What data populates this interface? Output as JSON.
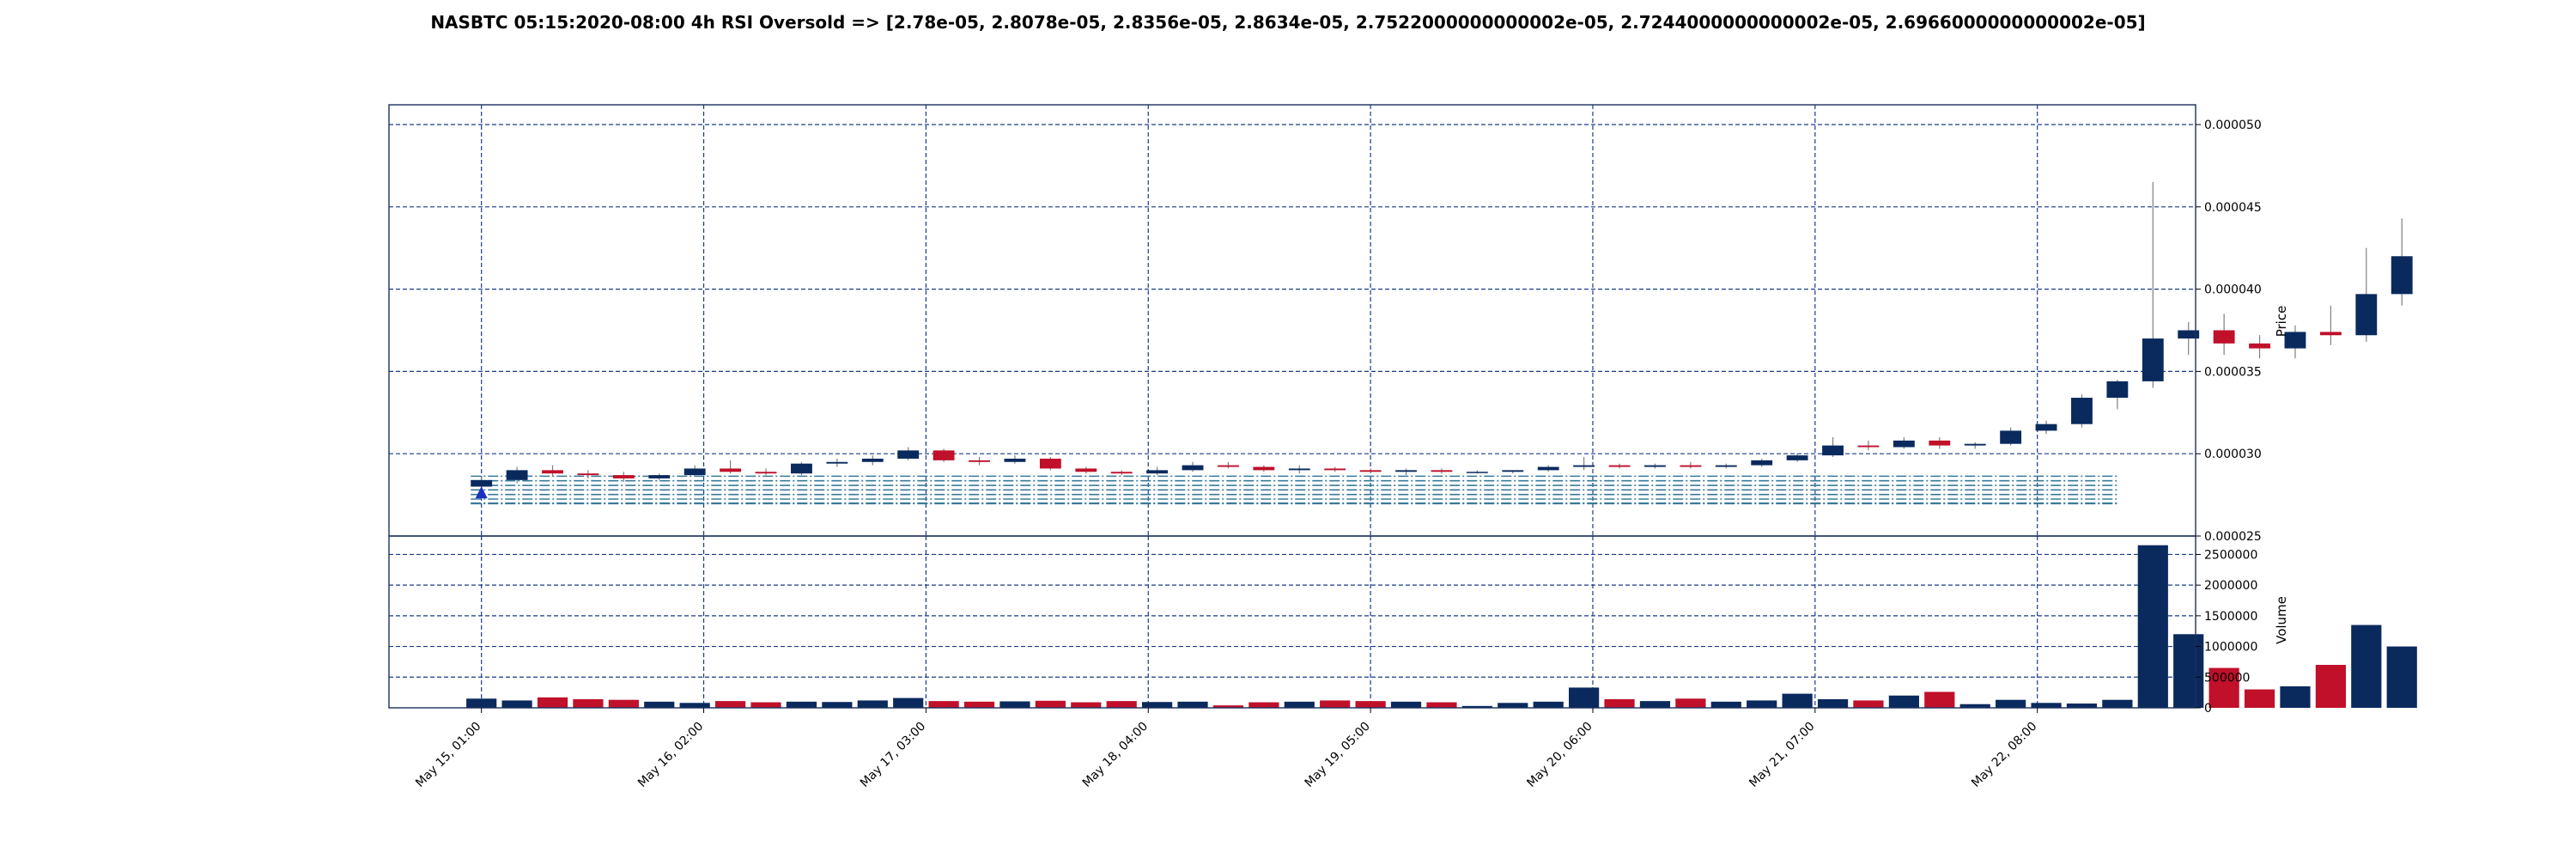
{
  "chart_data": {
    "type": "candlestick",
    "title": "NASBTC 05:15:2020-08:00 4h RSI Oversold => [2.78e-05, 2.8078e-05, 2.8356e-05, 2.8634e-05, 2.7522000000000002e-05, 2.7244000000000002e-05, 2.6966000000000002e-05]",
    "price_axis": {
      "label": "Price",
      "ylim": [
        2.5e-05,
        5.12e-05
      ],
      "ticks": [
        "0.000025",
        "0.000030",
        "0.000035",
        "0.000040",
        "0.000045",
        "0.000050"
      ],
      "position": "right"
    },
    "volume_axis": {
      "label": "Volume",
      "ylim": [
        0,
        2800000
      ],
      "ticks": [
        "0",
        "500000",
        "1000000",
        "1500000",
        "2000000",
        "2500000"
      ],
      "position": "right"
    },
    "x_axis": {
      "ticks": [
        "May 15, 01:00",
        "May 16, 02:00",
        "May 17, 03:00",
        "May 18, 04:00",
        "May 19, 05:00",
        "May 20, 06:00",
        "May 21, 07:00",
        "May 22, 08:00"
      ],
      "tick_index": [
        0,
        6.25,
        12.5,
        18.75,
        25,
        31.25,
        37.5,
        43.75
      ],
      "range": [
        -2.6,
        48.2
      ]
    },
    "grid": true,
    "colors": {
      "up": "#0a2a5e",
      "down": "#c0102a",
      "grid": "#1a3a8a",
      "support": "#3a7a9a",
      "marker": "#1a30c0"
    },
    "support_levels": [
      2.7e-05,
      2.7244e-05,
      2.7522e-05,
      2.78e-05,
      2.8078e-05,
      2.8356e-05,
      2.8634e-05,
      2.6966e-05
    ],
    "support_range": [
      -0.3,
      46.0
    ],
    "signal_marker": {
      "x": 0,
      "y": 2.76e-05
    },
    "candles": [
      {
        "o": 2.8e-05,
        "h": 2.86e-05,
        "l": 2.78e-05,
        "c": 2.84e-05,
        "v": 150000
      },
      {
        "o": 2.84e-05,
        "h": 2.92e-05,
        "l": 2.82e-05,
        "c": 2.9e-05,
        "v": 120000
      },
      {
        "o": 2.9e-05,
        "h": 2.93e-05,
        "l": 2.86e-05,
        "c": 2.88e-05,
        "v": 170000
      },
      {
        "o": 2.88e-05,
        "h": 2.9e-05,
        "l": 2.85e-05,
        "c": 2.87e-05,
        "v": 140000
      },
      {
        "o": 2.87e-05,
        "h": 2.89e-05,
        "l": 2.83e-05,
        "c": 2.85e-05,
        "v": 130000
      },
      {
        "o": 2.85e-05,
        "h": 2.88e-05,
        "l": 2.84e-05,
        "c": 2.87e-05,
        "v": 100000
      },
      {
        "o": 2.87e-05,
        "h": 2.93e-05,
        "l": 2.86e-05,
        "c": 2.91e-05,
        "v": 80000
      },
      {
        "o": 2.91e-05,
        "h": 2.96e-05,
        "l": 2.88e-05,
        "c": 2.89e-05,
        "v": 110000
      },
      {
        "o": 2.89e-05,
        "h": 2.91e-05,
        "l": 2.87e-05,
        "c": 2.88e-05,
        "v": 90000
      },
      {
        "o": 2.88e-05,
        "h": 2.95e-05,
        "l": 2.87e-05,
        "c": 2.94e-05,
        "v": 100000
      },
      {
        "o": 2.94e-05,
        "h": 2.97e-05,
        "l": 2.92e-05,
        "c": 2.95e-05,
        "v": 95000
      },
      {
        "o": 2.95e-05,
        "h": 2.99e-05,
        "l": 2.93e-05,
        "c": 2.97e-05,
        "v": 120000
      },
      {
        "o": 2.97e-05,
        "h": 3.04e-05,
        "l": 2.96e-05,
        "c": 3.02e-05,
        "v": 160000
      },
      {
        "o": 3.02e-05,
        "h": 3.03e-05,
        "l": 2.95e-05,
        "c": 2.96e-05,
        "v": 110000
      },
      {
        "o": 2.96e-05,
        "h": 2.98e-05,
        "l": 2.93e-05,
        "c": 2.95e-05,
        "v": 100000
      },
      {
        "o": 2.95e-05,
        "h": 2.99e-05,
        "l": 2.94e-05,
        "c": 2.97e-05,
        "v": 105000
      },
      {
        "o": 2.97e-05,
        "h": 2.98e-05,
        "l": 2.9e-05,
        "c": 2.91e-05,
        "v": 115000
      },
      {
        "o": 2.91e-05,
        "h": 2.92e-05,
        "l": 2.88e-05,
        "c": 2.89e-05,
        "v": 90000
      },
      {
        "o": 2.89e-05,
        "h": 2.9e-05,
        "l": 2.87e-05,
        "c": 2.88e-05,
        "v": 110000
      },
      {
        "o": 2.88e-05,
        "h": 2.92e-05,
        "l": 2.87e-05,
        "c": 2.9e-05,
        "v": 95000
      },
      {
        "o": 2.9e-05,
        "h": 2.95e-05,
        "l": 2.89e-05,
        "c": 2.93e-05,
        "v": 100000
      },
      {
        "o": 2.93e-05,
        "h": 2.95e-05,
        "l": 2.91e-05,
        "c": 2.92e-05,
        "v": 40000
      },
      {
        "o": 2.92e-05,
        "h": 2.93e-05,
        "l": 2.89e-05,
        "c": 2.9e-05,
        "v": 90000
      },
      {
        "o": 2.9e-05,
        "h": 2.93e-05,
        "l": 2.88e-05,
        "c": 2.91e-05,
        "v": 100000
      },
      {
        "o": 2.91e-05,
        "h": 2.92e-05,
        "l": 2.89e-05,
        "c": 2.9e-05,
        "v": 120000
      },
      {
        "o": 2.9e-05,
        "h": 2.91e-05,
        "l": 2.88e-05,
        "c": 2.89e-05,
        "v": 110000
      },
      {
        "o": 2.89e-05,
        "h": 2.91e-05,
        "l": 2.87e-05,
        "c": 2.9e-05,
        "v": 100000
      },
      {
        "o": 2.9e-05,
        "h": 2.91e-05,
        "l": 2.88e-05,
        "c": 2.89e-05,
        "v": 90000
      },
      {
        "o": 2.89e-05,
        "h": 2.9e-05,
        "l": 2.88e-05,
        "c": 2.89e-05,
        "v": 30000
      },
      {
        "o": 2.89e-05,
        "h": 2.9e-05,
        "l": 2.88e-05,
        "c": 2.9e-05,
        "v": 80000
      },
      {
        "o": 2.9e-05,
        "h": 2.93e-05,
        "l": 2.89e-05,
        "c": 2.92e-05,
        "v": 100000
      },
      {
        "o": 2.92e-05,
        "h": 2.98e-05,
        "l": 2.9e-05,
        "c": 2.93e-05,
        "v": 330000
      },
      {
        "o": 2.93e-05,
        "h": 2.94e-05,
        "l": 2.91e-05,
        "c": 2.92e-05,
        "v": 140000
      },
      {
        "o": 2.92e-05,
        "h": 2.94e-05,
        "l": 2.91e-05,
        "c": 2.93e-05,
        "v": 110000
      },
      {
        "o": 2.93e-05,
        "h": 2.95e-05,
        "l": 2.91e-05,
        "c": 2.92e-05,
        "v": 150000
      },
      {
        "o": 2.92e-05,
        "h": 2.94e-05,
        "l": 2.91e-05,
        "c": 2.93e-05,
        "v": 100000
      },
      {
        "o": 2.93e-05,
        "h": 2.97e-05,
        "l": 2.92e-05,
        "c": 2.96e-05,
        "v": 120000
      },
      {
        "o": 2.96e-05,
        "h": 3e-05,
        "l": 2.95e-05,
        "c": 2.99e-05,
        "v": 230000
      },
      {
        "o": 2.99e-05,
        "h": 3.1e-05,
        "l": 2.98e-05,
        "c": 3.05e-05,
        "v": 140000
      },
      {
        "o": 3.05e-05,
        "h": 3.08e-05,
        "l": 3.02e-05,
        "c": 3.04e-05,
        "v": 120000
      },
      {
        "o": 3.04e-05,
        "h": 3.1e-05,
        "l": 3.03e-05,
        "c": 3.08e-05,
        "v": 200000
      },
      {
        "o": 3.08e-05,
        "h": 3.1e-05,
        "l": 3.03e-05,
        "c": 3.05e-05,
        "v": 260000
      },
      {
        "o": 3.05e-05,
        "h": 3.07e-05,
        "l": 3.03e-05,
        "c": 3.06e-05,
        "v": 60000
      },
      {
        "o": 3.06e-05,
        "h": 3.16e-05,
        "l": 3.05e-05,
        "c": 3.14e-05,
        "v": 130000
      },
      {
        "o": 3.14e-05,
        "h": 3.2e-05,
        "l": 3.12e-05,
        "c": 3.18e-05,
        "v": 80000
      },
      {
        "o": 3.18e-05,
        "h": 3.36e-05,
        "l": 3.16e-05,
        "c": 3.34e-05,
        "v": 70000
      },
      {
        "o": 3.34e-05,
        "h": 3.45e-05,
        "l": 3.27e-05,
        "c": 3.44e-05,
        "v": 130000
      },
      {
        "o": 3.44e-05,
        "h": 4.65e-05,
        "l": 3.4e-05,
        "c": 3.7e-05,
        "v": 2650000
      },
      {
        "o": 3.7e-05,
        "h": 3.8e-05,
        "l": 3.6e-05,
        "c": 3.75e-05,
        "v": 1200000
      },
      {
        "o": 3.75e-05,
        "h": 3.85e-05,
        "l": 3.6e-05,
        "c": 3.67e-05,
        "v": 650000
      },
      {
        "o": 3.67e-05,
        "h": 3.72e-05,
        "l": 3.58e-05,
        "c": 3.64e-05,
        "v": 300000
      },
      {
        "o": 3.64e-05,
        "h": 3.78e-05,
        "l": 3.58e-05,
        "c": 3.74e-05,
        "v": 350000
      },
      {
        "o": 3.74e-05,
        "h": 3.9e-05,
        "l": 3.66e-05,
        "c": 3.72e-05,
        "v": 700000
      },
      {
        "o": 3.72e-05,
        "h": 4.25e-05,
        "l": 3.68e-05,
        "c": 3.97e-05,
        "v": 1350000
      },
      {
        "o": 3.97e-05,
        "h": 4.43e-05,
        "l": 3.9e-05,
        "c": 4.2e-05,
        "v": 1000000
      }
    ]
  }
}
